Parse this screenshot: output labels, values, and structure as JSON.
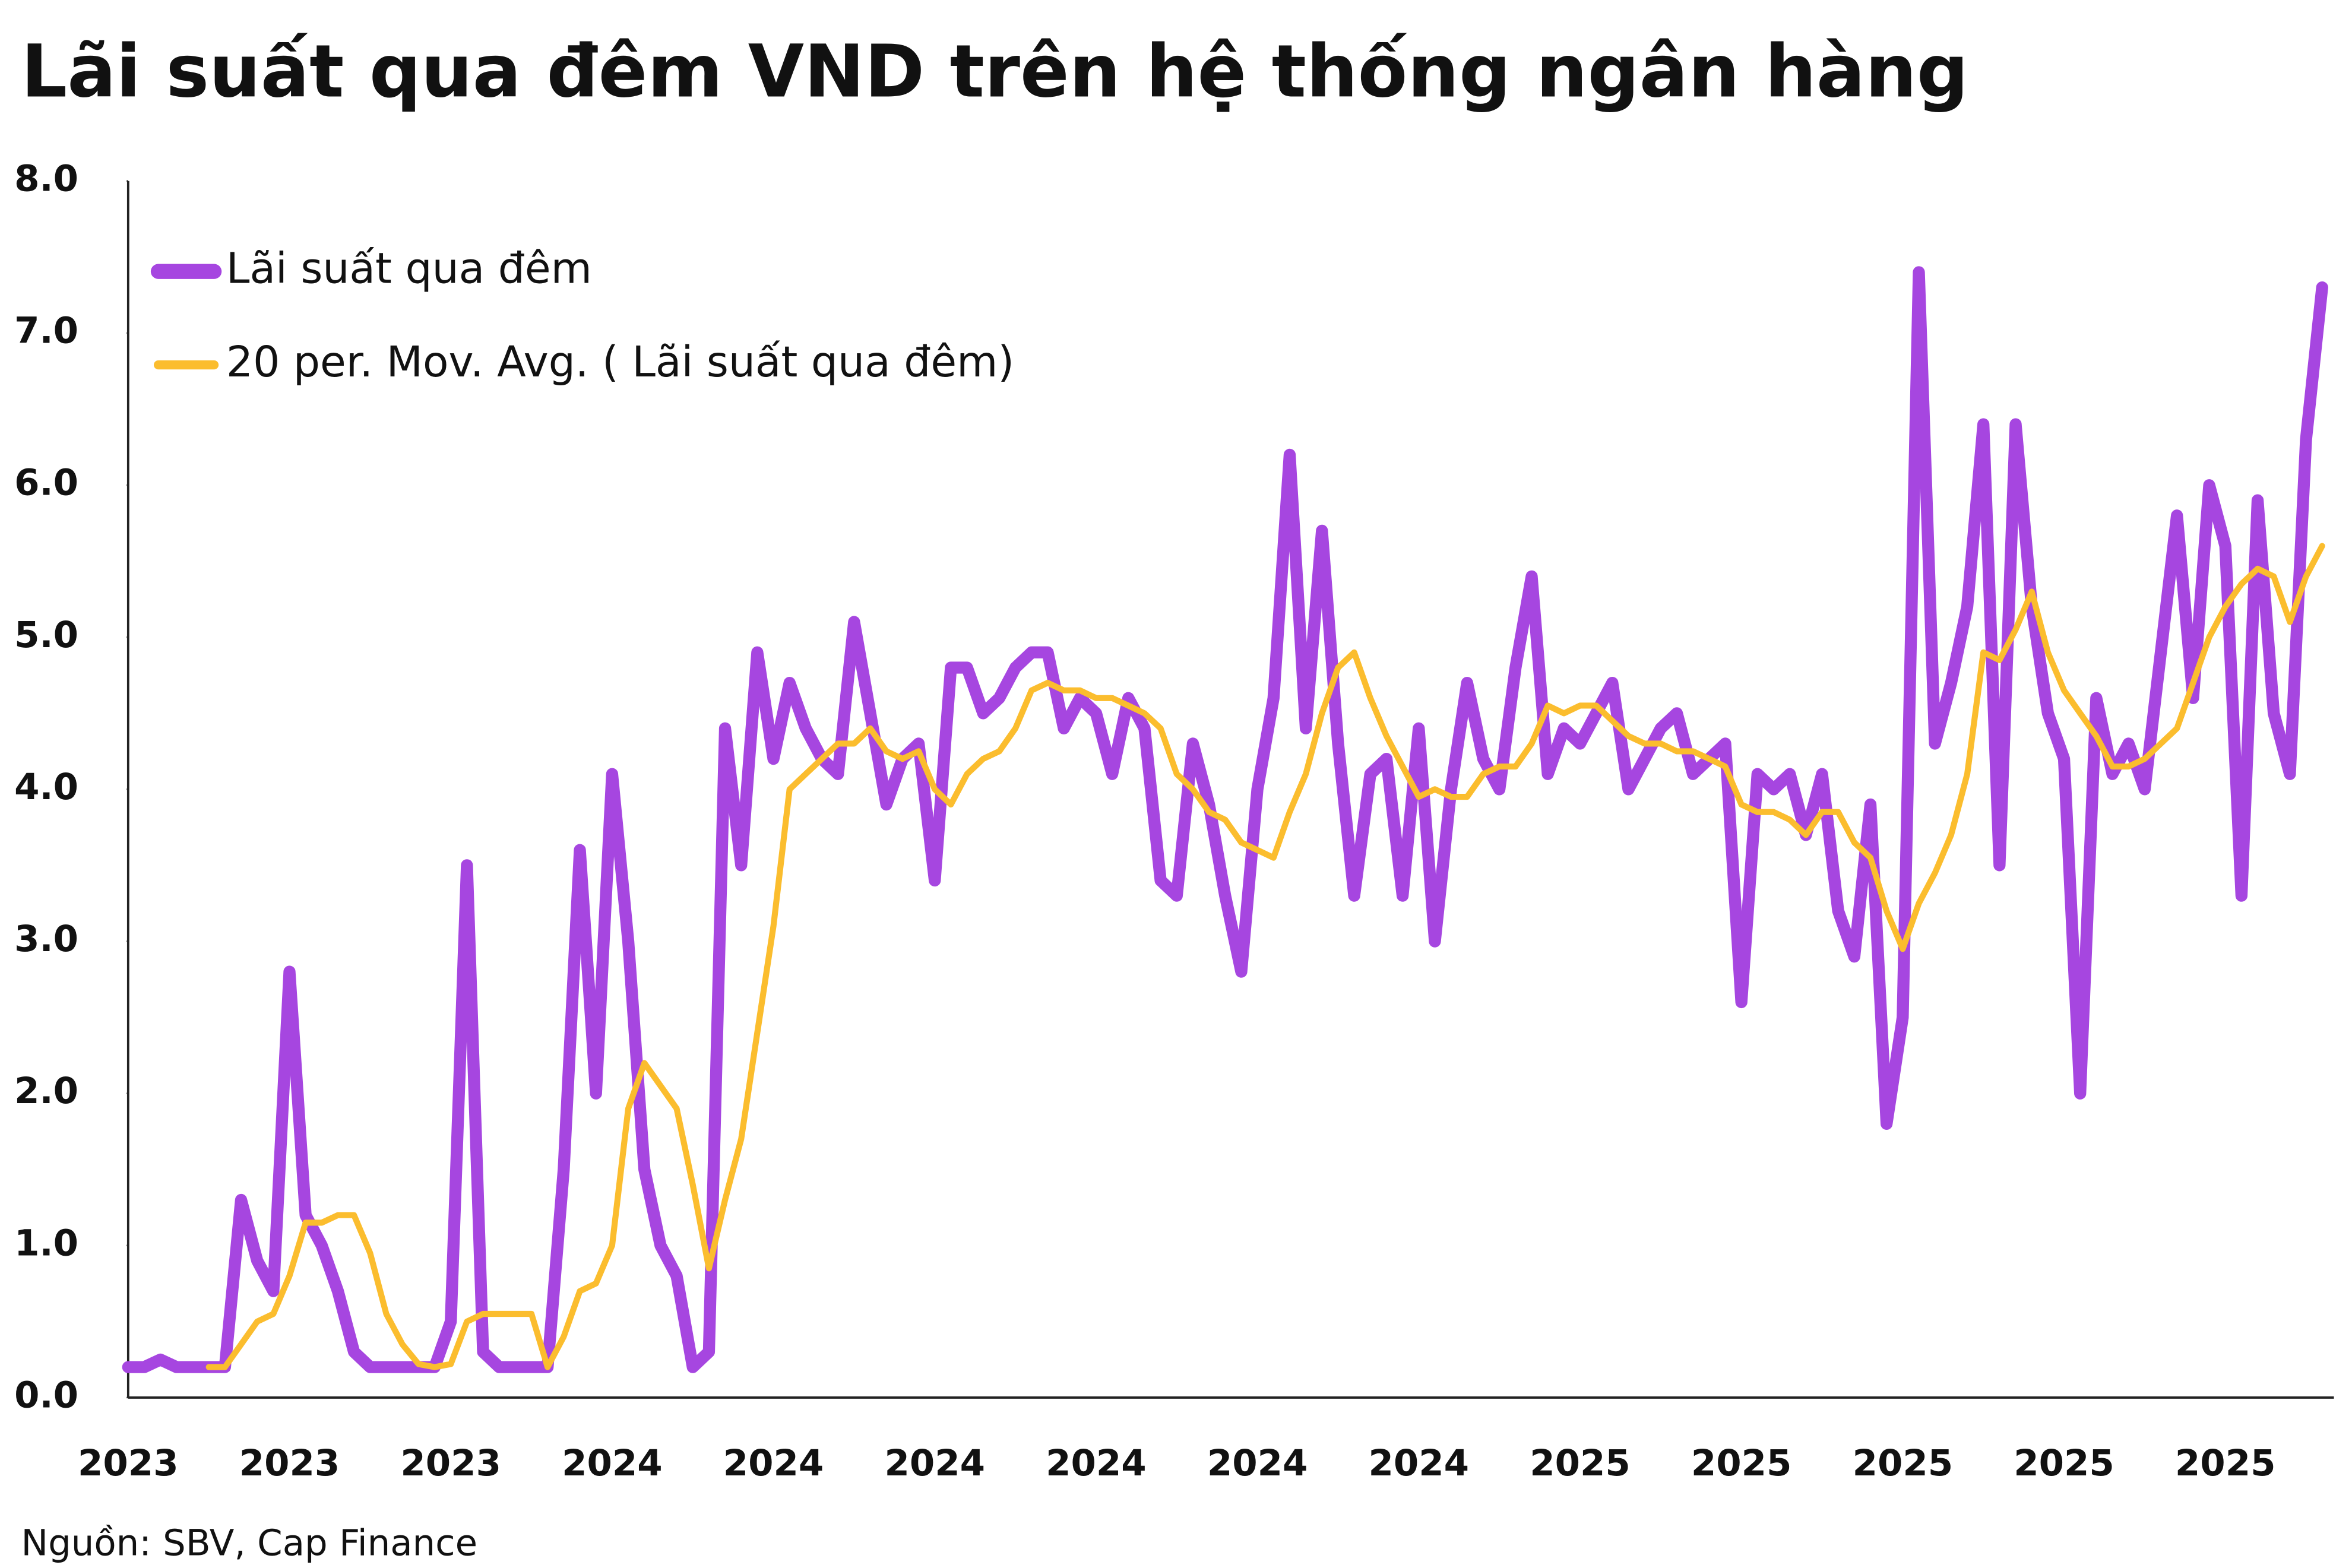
{
  "chart_data": {
    "type": "line",
    "title": "Lãi suất qua đêm VND trên hệ thống ngân hàng",
    "source": "Nguồn: SBV, Cap Finance",
    "categories": [
      "2023",
      null,
      null,
      null,
      null,
      null,
      null,
      null,
      null,
      null,
      "2023",
      null,
      null,
      null,
      null,
      null,
      null,
      null,
      null,
      null,
      "2023",
      null,
      null,
      null,
      null,
      null,
      null,
      null,
      null,
      null,
      "2024",
      null,
      null,
      null,
      null,
      null,
      null,
      null,
      null,
      null,
      "2024",
      null,
      null,
      null,
      null,
      null,
      null,
      null,
      null,
      null,
      "2024",
      null,
      null,
      null,
      null,
      null,
      null,
      null,
      null,
      null,
      "2024",
      null,
      null,
      null,
      null,
      null,
      null,
      null,
      null,
      null,
      "2024",
      null,
      null,
      null,
      null,
      null,
      null,
      null,
      null,
      null,
      "2024",
      null,
      null,
      null,
      null,
      null,
      null,
      null,
      null,
      null,
      "2025",
      null,
      null,
      null,
      null,
      null,
      null,
      null,
      null,
      null,
      "2025",
      null,
      null,
      null,
      null,
      null,
      null,
      null,
      null,
      null,
      "2025",
      null,
      null,
      null,
      null,
      null,
      null,
      null,
      null,
      null,
      "2025",
      null,
      null,
      null,
      null,
      null,
      null,
      null,
      null,
      null,
      "2025",
      null,
      null,
      null,
      null,
      null,
      null
    ],
    "series": [
      {
        "name": "Lãi suất qua đêm",
        "color": "#a646e0",
        "width": 8,
        "values": [
          0.2,
          0.2,
          0.25,
          0.2,
          0.2,
          0.2,
          0.2,
          1.3,
          0.9,
          0.7,
          2.8,
          1.2,
          1.0,
          0.7,
          0.3,
          0.2,
          0.2,
          0.2,
          0.2,
          0.2,
          0.5,
          3.5,
          0.3,
          0.2,
          0.2,
          0.2,
          0.2,
          1.5,
          3.6,
          2.0,
          4.1,
          3.0,
          1.5,
          1.0,
          0.8,
          0.2,
          0.3,
          4.4,
          3.5,
          4.9,
          4.2,
          4.7,
          4.4,
          4.2,
          4.1,
          5.1,
          4.5,
          3.9,
          4.2,
          4.3,
          3.4,
          4.8,
          4.8,
          4.5,
          4.6,
          4.8,
          4.9,
          4.9,
          4.4,
          4.6,
          4.5,
          4.1,
          4.6,
          4.4,
          3.4,
          3.3,
          4.3,
          3.9,
          3.3,
          2.8,
          4.0,
          4.6,
          6.2,
          4.4,
          5.7,
          4.3,
          3.3,
          4.1,
          4.2,
          3.3,
          4.4,
          3.0,
          4.0,
          4.7,
          4.2,
          4.0,
          4.8,
          5.4,
          4.1,
          4.4,
          4.3,
          4.5,
          4.7,
          4.0,
          4.2,
          4.4,
          4.5,
          4.1,
          4.2,
          4.3,
          2.6,
          4.1,
          4.0,
          4.1,
          3.7,
          4.1,
          3.2,
          2.9,
          3.9,
          1.8,
          2.5,
          7.4,
          4.3,
          4.7,
          5.2,
          6.4,
          3.5,
          6.4,
          5.2,
          4.5,
          4.2,
          2.0,
          4.6,
          4.1,
          4.3,
          4.0,
          4.9,
          5.8,
          4.6,
          6.0,
          5.6,
          3.3,
          5.9,
          4.5,
          4.1,
          6.3,
          7.3
        ]
      },
      {
        "name": "20 per. Mov. Avg. ( Lãi suất qua đêm)",
        "color": "#fbbd2e",
        "width": 4,
        "values": [
          null,
          null,
          null,
          null,
          null,
          0.2,
          0.2,
          0.35,
          0.5,
          0.55,
          0.8,
          1.15,
          1.15,
          1.2,
          1.2,
          0.95,
          0.55,
          0.35,
          0.22,
          0.2,
          0.22,
          0.5,
          0.55,
          0.55,
          0.55,
          0.55,
          0.2,
          0.4,
          0.7,
          0.75,
          1.0,
          1.9,
          2.2,
          2.05,
          1.9,
          1.4,
          0.85,
          1.3,
          1.7,
          2.4,
          3.1,
          4.0,
          4.1,
          4.2,
          4.3,
          4.3,
          4.4,
          4.25,
          4.2,
          4.25,
          4.0,
          3.9,
          4.1,
          4.2,
          4.25,
          4.4,
          4.65,
          4.7,
          4.65,
          4.65,
          4.6,
          4.6,
          4.55,
          4.5,
          4.4,
          4.1,
          4.0,
          3.85,
          3.8,
          3.65,
          3.6,
          3.55,
          3.85,
          4.1,
          4.5,
          4.8,
          4.9,
          4.6,
          4.35,
          4.15,
          3.95,
          4.0,
          3.95,
          3.95,
          4.1,
          4.15,
          4.15,
          4.3,
          4.55,
          4.5,
          4.55,
          4.55,
          4.45,
          4.35,
          4.3,
          4.3,
          4.25,
          4.25,
          4.2,
          4.15,
          3.9,
          3.85,
          3.85,
          3.8,
          3.7,
          3.85,
          3.85,
          3.65,
          3.55,
          3.2,
          2.95,
          3.25,
          3.45,
          3.7,
          4.1,
          4.9,
          4.85,
          5.05,
          5.3,
          4.9,
          4.65,
          4.5,
          4.35,
          4.15,
          4.15,
          4.2,
          4.3,
          4.4,
          4.7,
          5.0,
          5.2,
          5.35,
          5.45,
          5.4,
          5.1,
          5.4,
          5.6
        ]
      }
    ],
    "ylim": [
      0,
      8
    ],
    "yticks": [
      {
        "value": 0,
        "label": "0.0"
      },
      {
        "value": 1,
        "label": "1.0"
      },
      {
        "value": 2,
        "label": "2.0"
      },
      {
        "value": 3,
        "label": "3.0"
      },
      {
        "value": 4,
        "label": "4.0"
      },
      {
        "value": 5,
        "label": "5.0"
      },
      {
        "value": 6,
        "label": "6.0"
      },
      {
        "value": 7,
        "label": "7.0"
      },
      {
        "value": 8,
        "label": "8.0"
      }
    ],
    "grid": false,
    "legend": "top-left"
  }
}
